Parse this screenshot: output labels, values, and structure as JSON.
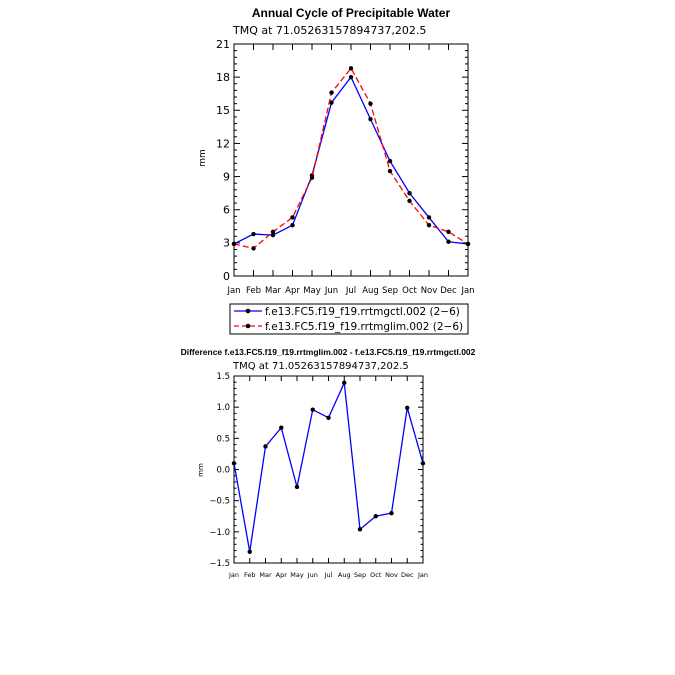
{
  "chart_data": [
    {
      "type": "line",
      "title": "Annual Cycle of Precipitable Water",
      "subtitle": "TMQ at 71.05263157894737,202.5",
      "ylabel": "mm",
      "ylim": [
        0,
        21
      ],
      "yticks": [
        0,
        3,
        6,
        9,
        12,
        15,
        18,
        21
      ],
      "categories": [
        "Jan",
        "Feb",
        "Mar",
        "Apr",
        "May",
        "Jun",
        "Jul",
        "Aug",
        "Sep",
        "Oct",
        "Nov",
        "Dec",
        "Jan"
      ],
      "legend_position": "bottom",
      "series": [
        {
          "name": "f.e13.FC5.f19_f19.rrtmgctl.002 (2−6)",
          "color": "#0000ff",
          "dash": "solid",
          "values": [
            2.9,
            3.8,
            3.7,
            4.6,
            9.1,
            15.7,
            18.0,
            14.2,
            10.4,
            7.5,
            5.3,
            3.1,
            2.9
          ]
        },
        {
          "name": "f.e13.FC5.f19_f19.rrtmglim.002 (2−6)",
          "color": "#ff0000",
          "dash": "dashed",
          "values": [
            2.9,
            2.5,
            4.0,
            5.3,
            8.9,
            16.6,
            18.8,
            15.6,
            9.5,
            6.8,
            4.6,
            4.0,
            2.9
          ]
        }
      ]
    },
    {
      "type": "line",
      "title": "Difference f.e13.FC5.f19_f19.rrtmglim.002 - f.e13.FC5.f19_f19.rrtmgctl.002",
      "subtitle": "TMQ at 71.05263157894737,202.5",
      "ylabel": "mm",
      "ylim": [
        -1.5,
        1.5
      ],
      "yticks": [
        -1.5,
        -1.0,
        -0.5,
        0.0,
        0.5,
        1.0,
        1.5
      ],
      "ytick_labels": [
        "−1.5",
        "−1.0",
        "−0.5",
        "0.0",
        "0.5",
        "1.0",
        "1.5"
      ],
      "categories": [
        "Jan",
        "Feb",
        "Mar",
        "Apr",
        "May",
        "Jun",
        "Jul",
        "Aug",
        "Sep",
        "Oct",
        "Nov",
        "Dec",
        "Jan"
      ],
      "series": [
        {
          "color": "#0000ff",
          "values": [
            0.1,
            -1.32,
            0.37,
            0.67,
            -0.28,
            0.96,
            0.83,
            1.39,
            -0.96,
            -0.75,
            -0.7,
            0.99,
            0.1
          ]
        }
      ]
    }
  ]
}
